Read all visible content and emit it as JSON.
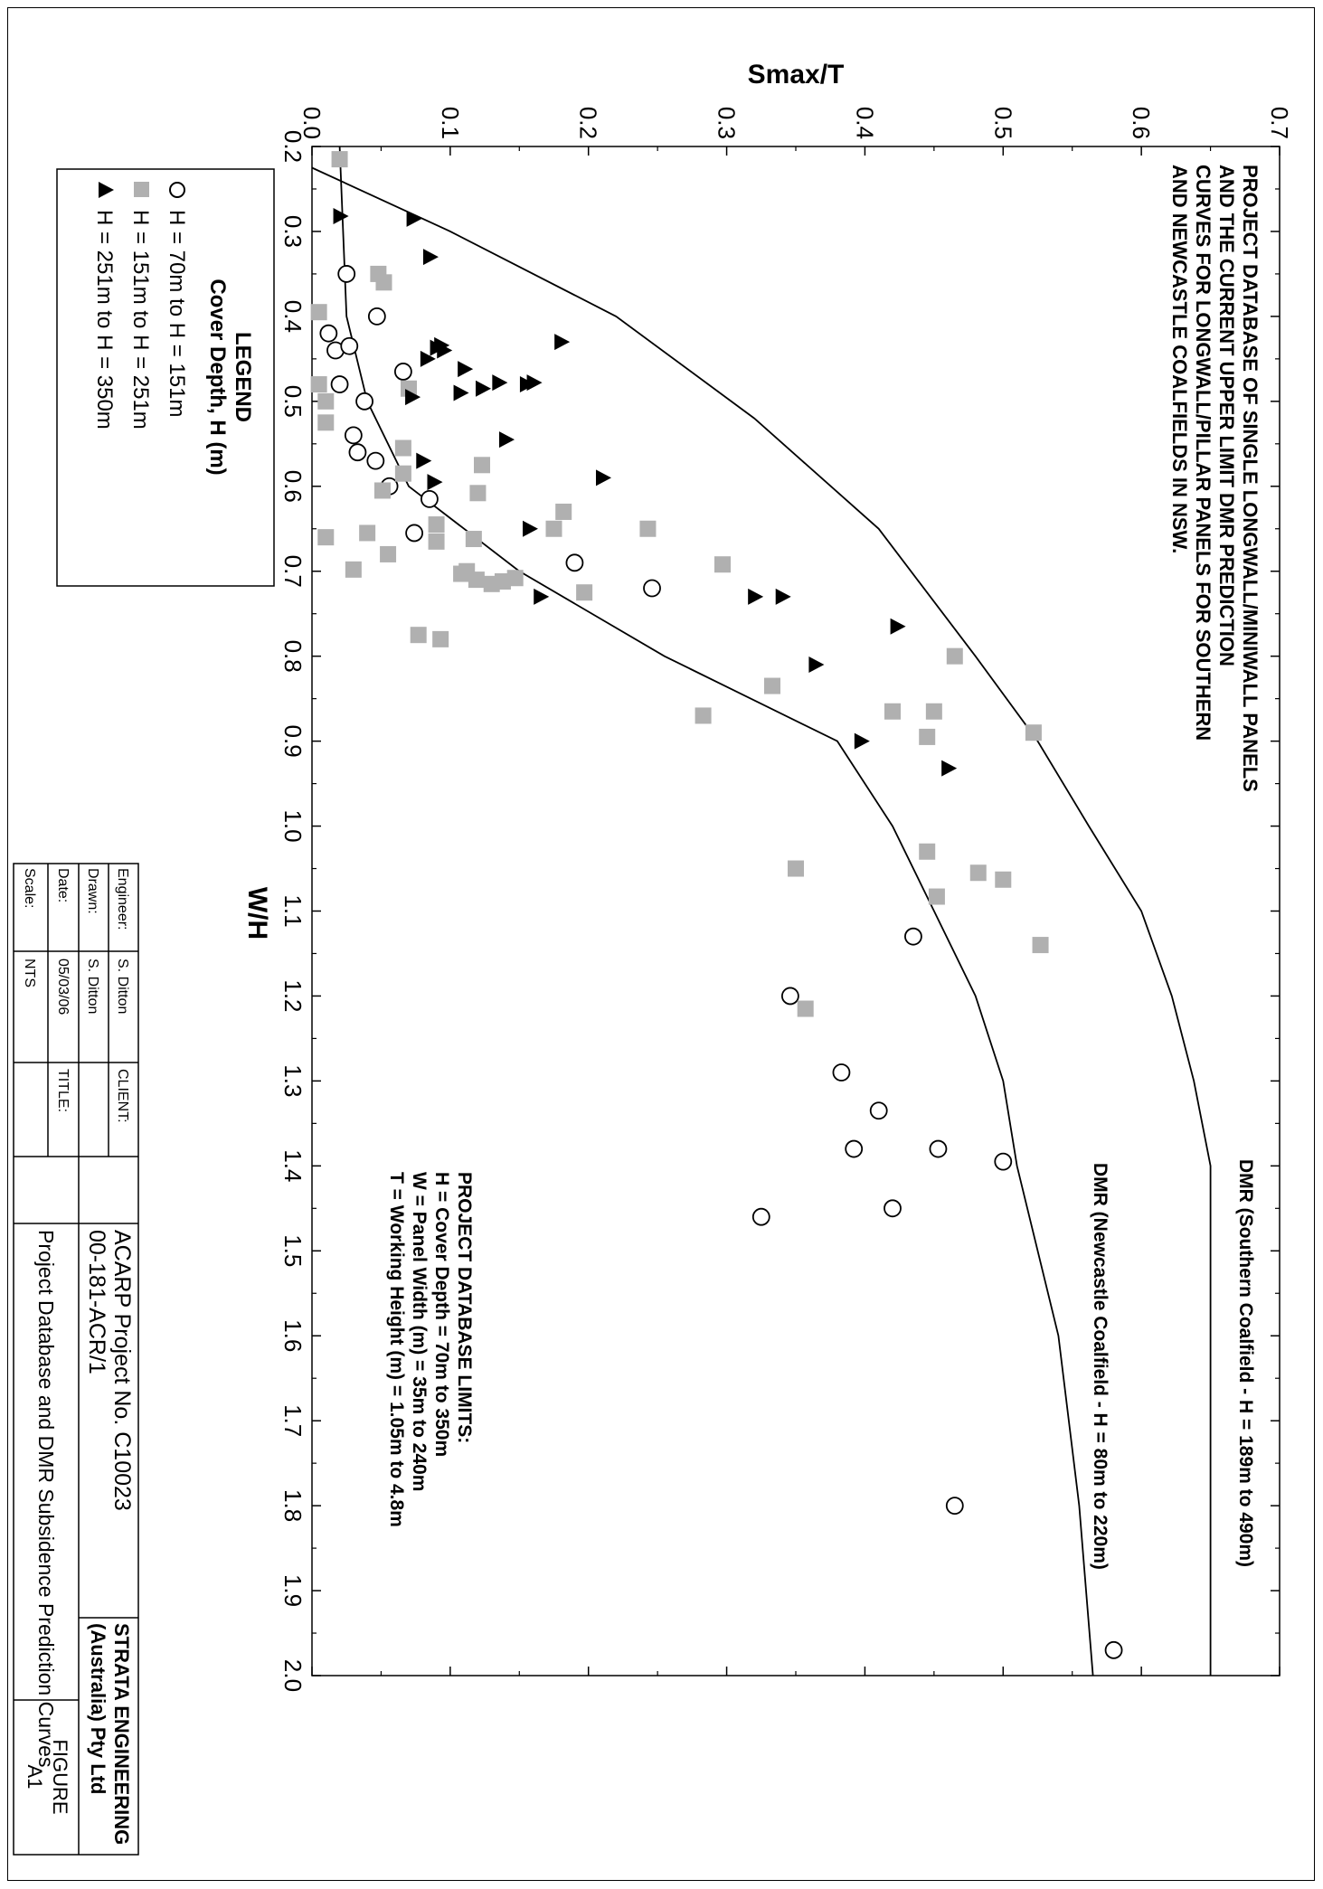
{
  "notes": {
    "title_lines": [
      "PROJECT DATABASE OF SINGLE LONGWALL/MINIWALL PANELS",
      "AND THE CURRENT UPPER LIMIT DMR PREDICTION",
      "CURVES FOR LONGWALL/PILLAR PANELS FOR SOUTHERN",
      "AND NEWCASTLE COALFIELDS IN NSW."
    ],
    "curve_southern": "DMR (Southern Coalfield - H = 189m to 490m)",
    "curve_newcastle": "DMR (Newcastle Coalfield - H = 80m to 220m)",
    "limits_lines": [
      "PROJECT DATABASE LIMITS:",
      "H = Cover Depth = 70m to 350m",
      "W = Panel Width (m) = 35m to 240m",
      "T = Working Height (m) = 1.05m to 4.8m"
    ]
  },
  "legend": {
    "title": "LEGEND",
    "subtitle": "Cover Depth, H (m)",
    "entries": [
      "H = 70m  to  H = 151m",
      "H = 151m  to  H = 251m",
      "H = 251m  to  H = 350m"
    ]
  },
  "title_block": {
    "engineer_label": "Engineer:",
    "engineer": "S. Ditton",
    "drawn_label": "Drawn:",
    "drawn": "S. Ditton",
    "date_label": "Date:",
    "date": "05/03/06",
    "scale_label": "Scale:",
    "scale": "NTS",
    "client_label": "CLIENT:",
    "client_line1": "ACARP Project No. C10023",
    "client_line2": "00-181-ACR/1",
    "company_line1": "STRATA ENGINEERING",
    "company_line2": "(Australia) Pty Ltd",
    "title_label": "TITLE:",
    "title": "Project Database and DMR Subsidence Prediction Curves",
    "figure_label": "FIGURE",
    "figure_no": "A1"
  },
  "chart_data": {
    "type": "scatter",
    "title": "",
    "xlabel": "W/H",
    "ylabel": "Smax/T",
    "xlim": [
      0.2,
      2.0
    ],
    "ylim": [
      0.0,
      0.7
    ],
    "xticks": [
      "0.2",
      "0.3",
      "0.4",
      "0.5",
      "0.6",
      "0.7",
      "0.8",
      "0.9",
      "1.0",
      "1.1",
      "1.2",
      "1.3",
      "1.4",
      "1.5",
      "1.6",
      "1.7",
      "1.8",
      "1.9",
      "2.0"
    ],
    "yticks": [
      "0.0",
      "0.1",
      "0.2",
      "0.3",
      "0.4",
      "0.5",
      "0.6",
      "0.7"
    ],
    "grid": false,
    "legend_position": "outside-bottom-left",
    "colors": {
      "grey_marker": "#b0b0b0",
      "line": "#000000"
    },
    "series": [
      {
        "name": "H = 70m  to  H = 151m",
        "marker": "circle-open",
        "points": [
          [
            1.97,
            0.58
          ],
          [
            1.8,
            0.465
          ],
          [
            1.46,
            0.325
          ],
          [
            1.45,
            0.42
          ],
          [
            1.395,
            0.5
          ],
          [
            1.38,
            0.453
          ],
          [
            1.38,
            0.392
          ],
          [
            1.335,
            0.41
          ],
          [
            1.29,
            0.383
          ],
          [
            1.2,
            0.346
          ],
          [
            1.13,
            0.435
          ],
          [
            0.72,
            0.246
          ],
          [
            0.69,
            0.19
          ],
          [
            0.655,
            0.074
          ],
          [
            0.615,
            0.085
          ],
          [
            0.6,
            0.056
          ],
          [
            0.57,
            0.046
          ],
          [
            0.56,
            0.033
          ],
          [
            0.54,
            0.03
          ],
          [
            0.5,
            0.038
          ],
          [
            0.48,
            0.02
          ],
          [
            0.465,
            0.066
          ],
          [
            0.44,
            0.017
          ],
          [
            0.435,
            0.027
          ],
          [
            0.42,
            0.012
          ],
          [
            0.4,
            0.047
          ],
          [
            0.35,
            0.025
          ]
        ]
      },
      {
        "name": "H = 151m  to  H = 251m",
        "marker": "square-grey",
        "points": [
          [
            1.215,
            0.357
          ],
          [
            1.14,
            0.527
          ],
          [
            1.05,
            0.35
          ],
          [
            1.083,
            0.452
          ],
          [
            1.063,
            0.5
          ],
          [
            1.055,
            0.482
          ],
          [
            1.03,
            0.445
          ],
          [
            0.89,
            0.522
          ],
          [
            0.895,
            0.445
          ],
          [
            0.87,
            0.283
          ],
          [
            0.865,
            0.45
          ],
          [
            0.865,
            0.42
          ],
          [
            0.835,
            0.333
          ],
          [
            0.8,
            0.465
          ],
          [
            0.78,
            0.093
          ],
          [
            0.775,
            0.077
          ],
          [
            0.725,
            0.197
          ],
          [
            0.715,
            0.13
          ],
          [
            0.712,
            0.138
          ],
          [
            0.71,
            0.119
          ],
          [
            0.708,
            0.147
          ],
          [
            0.703,
            0.108
          ],
          [
            0.7,
            0.112
          ],
          [
            0.698,
            0.03
          ],
          [
            0.692,
            0.297
          ],
          [
            0.68,
            0.055
          ],
          [
            0.665,
            0.09
          ],
          [
            0.662,
            0.117
          ],
          [
            0.66,
            0.01
          ],
          [
            0.655,
            0.04
          ],
          [
            0.65,
            0.243
          ],
          [
            0.65,
            0.175
          ],
          [
            0.645,
            0.09
          ],
          [
            0.63,
            0.182
          ],
          [
            0.608,
            0.12
          ],
          [
            0.605,
            0.051
          ],
          [
            0.585,
            0.066
          ],
          [
            0.575,
            0.123
          ],
          [
            0.555,
            0.066
          ],
          [
            0.525,
            0.01
          ],
          [
            0.5,
            0.01
          ],
          [
            0.485,
            0.07
          ],
          [
            0.48,
            0.005
          ],
          [
            0.395,
            0.005
          ],
          [
            0.36,
            0.052
          ],
          [
            0.35,
            0.048
          ],
          [
            0.215,
            0.02
          ]
        ]
      },
      {
        "name": "H = 251m  to  H = 350m",
        "marker": "triangle-filled",
        "points": [
          [
            0.932,
            0.46
          ],
          [
            0.9,
            0.397
          ],
          [
            0.81,
            0.364
          ],
          [
            0.765,
            0.423
          ],
          [
            0.73,
            0.34
          ],
          [
            0.73,
            0.32
          ],
          [
            0.73,
            0.165
          ],
          [
            0.65,
            0.157
          ],
          [
            0.595,
            0.088
          ],
          [
            0.59,
            0.21
          ],
          [
            0.57,
            0.08
          ],
          [
            0.545,
            0.14
          ],
          [
            0.495,
            0.072
          ],
          [
            0.49,
            0.107
          ],
          [
            0.485,
            0.123
          ],
          [
            0.48,
            0.155
          ],
          [
            0.478,
            0.16
          ],
          [
            0.478,
            0.135
          ],
          [
            0.462,
            0.11
          ],
          [
            0.45,
            0.083
          ],
          [
            0.44,
            0.095
          ],
          [
            0.437,
            0.09
          ],
          [
            0.434,
            0.093
          ],
          [
            0.43,
            0.18
          ],
          [
            0.33,
            0.085
          ],
          [
            0.285,
            0.073
          ],
          [
            0.282,
            0.02
          ]
        ]
      }
    ],
    "curves": [
      {
        "name": "DMR (Southern Coalfield - H = 189m to 490m)",
        "points": [
          [
            0.225,
            0.0
          ],
          [
            0.3,
            0.1
          ],
          [
            0.4,
            0.22
          ],
          [
            0.52,
            0.32
          ],
          [
            0.65,
            0.41
          ],
          [
            0.8,
            0.48
          ],
          [
            0.9,
            0.525
          ],
          [
            1.0,
            0.562
          ],
          [
            1.1,
            0.6
          ],
          [
            1.2,
            0.622
          ],
          [
            1.3,
            0.638
          ],
          [
            1.4,
            0.65
          ],
          [
            2.0,
            0.65
          ]
        ]
      },
      {
        "name": "DMR (Newcastle Coalfield - H = 80m to 220m)",
        "points": [
          [
            0.2,
            0.02
          ],
          [
            0.4,
            0.025
          ],
          [
            0.5,
            0.04
          ],
          [
            0.6,
            0.07
          ],
          [
            0.7,
            0.15
          ],
          [
            0.8,
            0.255
          ],
          [
            0.9,
            0.38
          ],
          [
            1.0,
            0.42
          ],
          [
            1.1,
            0.45
          ],
          [
            1.2,
            0.48
          ],
          [
            1.3,
            0.5
          ],
          [
            1.4,
            0.51
          ],
          [
            1.6,
            0.54
          ],
          [
            1.8,
            0.555
          ],
          [
            2.0,
            0.565
          ]
        ]
      }
    ]
  }
}
